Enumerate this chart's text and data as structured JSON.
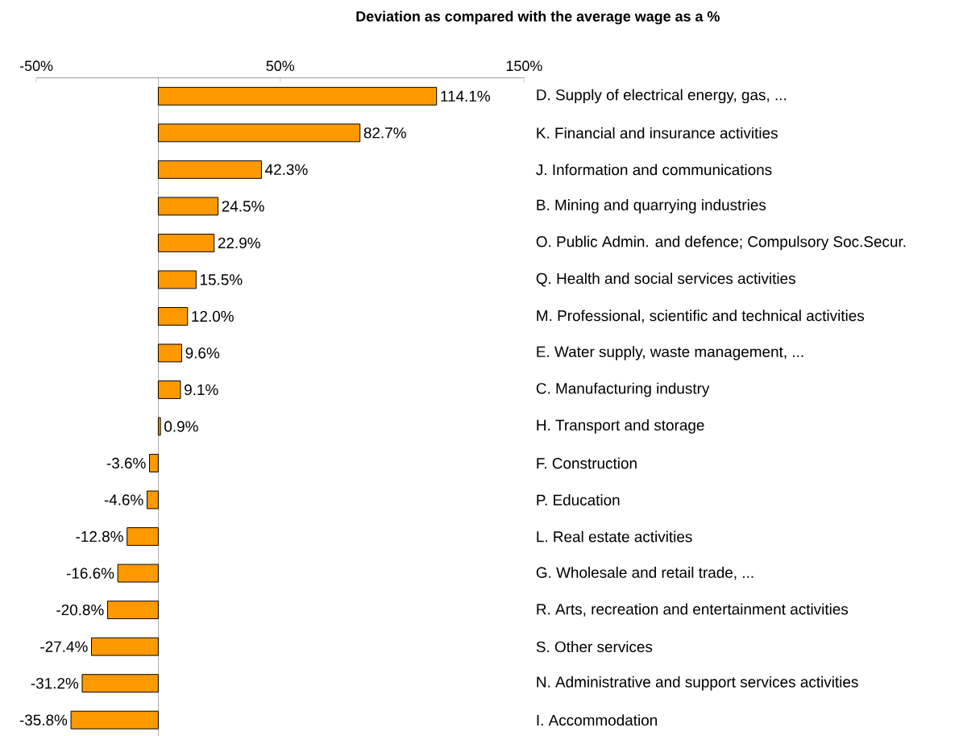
{
  "chart_data": {
    "type": "bar",
    "orientation": "horizontal",
    "title": "Deviation as compared with the average wage as a %",
    "categories": [
      "D. Supply of electrical energy, gas, ...",
      "K. Financial and insurance activities",
      "J. Information and communications",
      "B. Mining and quarrying industries",
      "O. Public Admin. and defence; Compulsory Soc.Secur.",
      "Q. Health and social services activities",
      "M. Professional, scientific and technical activities",
      "E. Water supply, waste management, ...",
      "C. Manufacturing industry",
      "H. Transport and storage",
      "F. Construction",
      "P. Education",
      "L. Real estate activities",
      "G. Wholesale and retail trade, ...",
      "R. Arts, recreation and entertainment activities",
      "S. Other services",
      "N. Administrative and support services activities",
      "I. Accommodation"
    ],
    "values": [
      114.1,
      82.7,
      42.3,
      24.5,
      22.9,
      15.5,
      12.0,
      9.6,
      9.1,
      0.9,
      -3.6,
      -4.6,
      -12.8,
      -16.6,
      -20.8,
      -27.4,
      -31.2,
      -35.8
    ],
    "value_labels": [
      "114.1%",
      "82.7%",
      "42.3%",
      "24.5%",
      "22.9%",
      "15.5%",
      "12.0%",
      "9.6%",
      "9.1%",
      "0.9%",
      "-3.6%",
      "-4.6%",
      "-12.8%",
      "-16.6%",
      "-20.8%",
      "-27.4%",
      "-31.2%",
      "-35.8%"
    ],
    "color": "#ff9900",
    "xlim": [
      -50,
      150
    ],
    "xticks": [
      {
        "value": -50,
        "label": "-50%"
      },
      {
        "value": 50,
        "label": "50%"
      },
      {
        "value": 150,
        "label": "150%"
      }
    ]
  }
}
